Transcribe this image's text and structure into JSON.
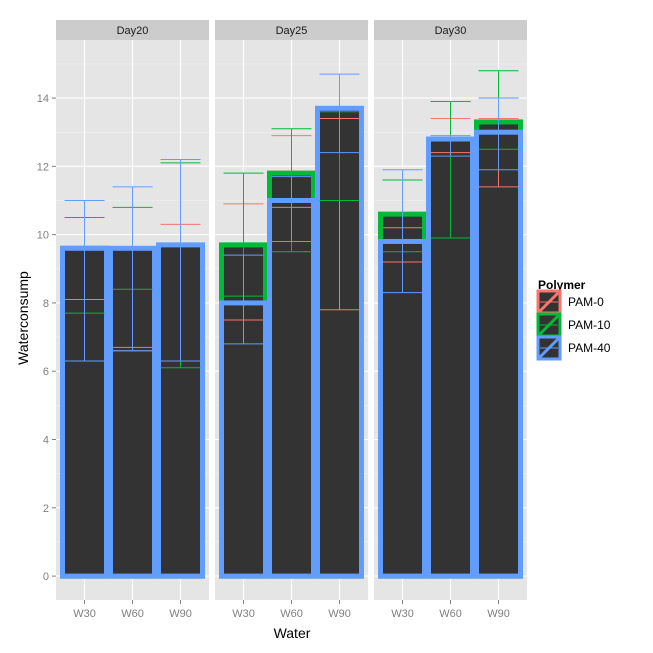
{
  "chart_data": {
    "type": "bar",
    "xlabel": "Water",
    "ylabel": "Waterconsump",
    "ylim": [
      -0.7,
      15.7
    ],
    "yticks": [
      0,
      2,
      4,
      6,
      8,
      10,
      12,
      14
    ],
    "ytick_labels": [
      "0",
      "2",
      "4",
      "6",
      "8",
      "10",
      "12",
      "14"
    ],
    "categories": [
      "W30",
      "W60",
      "W90"
    ],
    "facets": [
      "Day20",
      "Day25",
      "Day30"
    ],
    "grid": true,
    "legend": {
      "title": "Polymer",
      "position": "right",
      "entries": [
        "PAM-0",
        "PAM-10",
        "PAM-40"
      ]
    },
    "colors": {
      "PAM-0": "#f8766d",
      "PAM-10": "#00ba38",
      "PAM-40": "#619cff",
      "bar_fill": "#333333",
      "panel_bg": "#e5e5e5",
      "strip_bg": "#cccccc",
      "grid": "#ffffff"
    },
    "series": [
      {
        "name": "PAM-0",
        "values": {
          "Day20": [
            9.4,
            9.3,
            9.6
          ],
          "Day25": [
            9.4,
            11.8,
            13.6
          ],
          "Day30": [
            9.7,
            12.7,
            12.9
          ]
        },
        "error_low": {
          "Day20": [
            6.3,
            6.7,
            6.3
          ],
          "Day25": [
            7.5,
            10.8,
            7.8
          ],
          "Day30": [
            9.2,
            12.4,
            11.4
          ]
        },
        "error_high": {
          "Day20": [
            8.1,
            6.6,
            10.3
          ],
          "Day25": [
            10.9,
            12.9,
            13.4
          ],
          "Day30": [
            10.2,
            13.4,
            13.4
          ]
        }
      },
      {
        "name": "PAM-10",
        "values": {
          "Day20": [
            9.6,
            9.5,
            9.6
          ],
          "Day25": [
            9.7,
            11.8,
            13.6
          ],
          "Day30": [
            10.6,
            12.7,
            13.3
          ]
        },
        "error_low": {
          "Day20": [
            7.7,
            8.4,
            6.1
          ],
          "Day25": [
            8.2,
            9.5,
            11.0
          ],
          "Day30": [
            9.5,
            9.9,
            12.5
          ]
        },
        "error_high": {
          "Day20": [
            10.5,
            10.8,
            12.1
          ],
          "Day25": [
            11.8,
            13.1,
            13.6
          ],
          "Day30": [
            11.6,
            13.9,
            14.8
          ]
        }
      },
      {
        "name": "PAM-40",
        "values": {
          "Day20": [
            9.6,
            9.6,
            9.7
          ],
          "Day25": [
            8.0,
            11.0,
            13.7
          ],
          "Day30": [
            9.8,
            12.8,
            13.0
          ]
        },
        "error_low": {
          "Day20": [
            6.3,
            6.6,
            6.3
          ],
          "Day25": [
            6.8,
            9.8,
            12.4
          ],
          "Day30": [
            8.3,
            12.3,
            11.9
          ]
        },
        "error_high": {
          "Day20": [
            11.0,
            11.4,
            12.2
          ],
          "Day25": [
            9.4,
            11.7,
            14.7
          ],
          "Day30": [
            11.9,
            12.9,
            14.0
          ]
        }
      }
    ]
  }
}
